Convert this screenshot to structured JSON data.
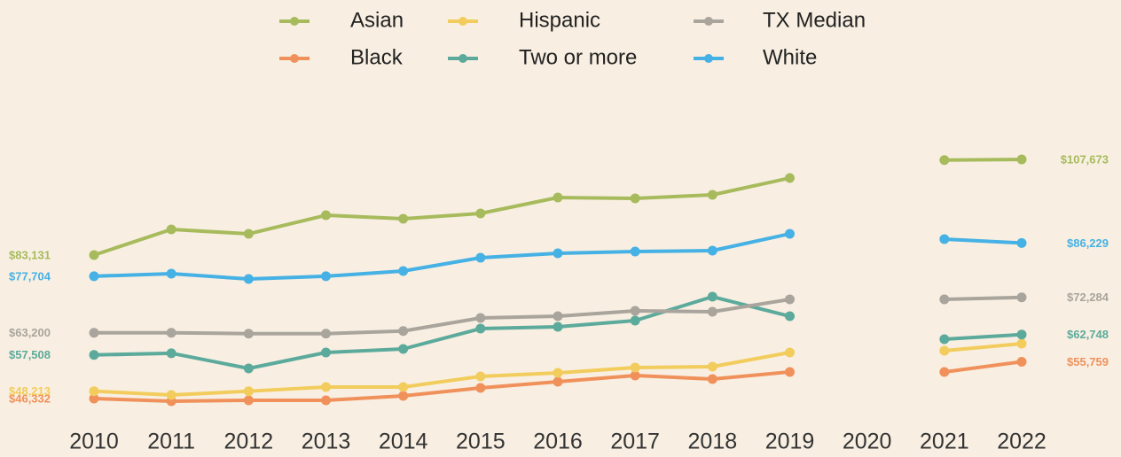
{
  "chart_data": {
    "type": "line",
    "categories": [
      "2010",
      "2011",
      "2012",
      "2013",
      "2014",
      "2015",
      "2016",
      "2017",
      "2018",
      "2019",
      "2020",
      "2021",
      "2022"
    ],
    "legend": "top",
    "series": [
      {
        "name": "Asian",
        "color": "#a7bb5c",
        "values": [
          83131,
          89720,
          88584,
          93355,
          92446,
          93809,
          97899,
          97672,
          98581,
          102897,
          null,
          107500,
          107673
        ],
        "value_labels": [
          "$83,131",
          null,
          null,
          null,
          null,
          null,
          null,
          null,
          null,
          null,
          null,
          null,
          "$107,673"
        ]
      },
      {
        "name": "Black",
        "color": "#f0915b",
        "values": [
          46332,
          45643,
          45870,
          45870,
          47006,
          49051,
          50641,
          52232,
          51323,
          53141,
          null,
          53141,
          55759
        ],
        "value_labels": [
          "$46,332",
          null,
          null,
          null,
          null,
          null,
          null,
          null,
          null,
          null,
          null,
          null,
          "$55,759"
        ]
      },
      {
        "name": "Hispanic",
        "color": "#f2cc5c",
        "values": [
          48213,
          47233,
          48213,
          49278,
          49278,
          52004,
          52913,
          54276,
          54504,
          58140,
          null,
          58593,
          60413
        ],
        "value_labels": [
          "$48,213",
          null,
          null,
          null,
          null,
          null,
          null,
          null,
          null,
          null,
          null,
          null,
          null
        ]
      },
      {
        "name": "Two or more",
        "color": "#5caa9b",
        "values": [
          57508,
          57950,
          54049,
          58140,
          59048,
          64273,
          64727,
          66318,
          72453,
          67454,
          null,
          61547,
          62748
        ],
        "value_labels": [
          "$57,508",
          null,
          null,
          null,
          null,
          null,
          null,
          null,
          null,
          null,
          null,
          null,
          "$62,748"
        ]
      },
      {
        "name": "TX Median",
        "color": "#a9a49c",
        "values": [
          63200,
          63200,
          62975,
          62975,
          63650,
          66999,
          67454,
          68817,
          68590,
          71771,
          null,
          71771,
          72284
        ],
        "value_labels": [
          "$63,200",
          null,
          null,
          null,
          null,
          null,
          null,
          null,
          null,
          null,
          null,
          null,
          "$72,284"
        ]
      },
      {
        "name": "White",
        "color": "#46b1e4",
        "values": [
          77704,
          78360,
          76997,
          77704,
          79041,
          82450,
          83585,
          84040,
          84267,
          88584,
          null,
          87220,
          86229
        ],
        "value_labels": [
          "$77,704",
          null,
          null,
          null,
          null,
          null,
          null,
          null,
          null,
          null,
          null,
          null,
          "$86,229"
        ]
      }
    ]
  }
}
